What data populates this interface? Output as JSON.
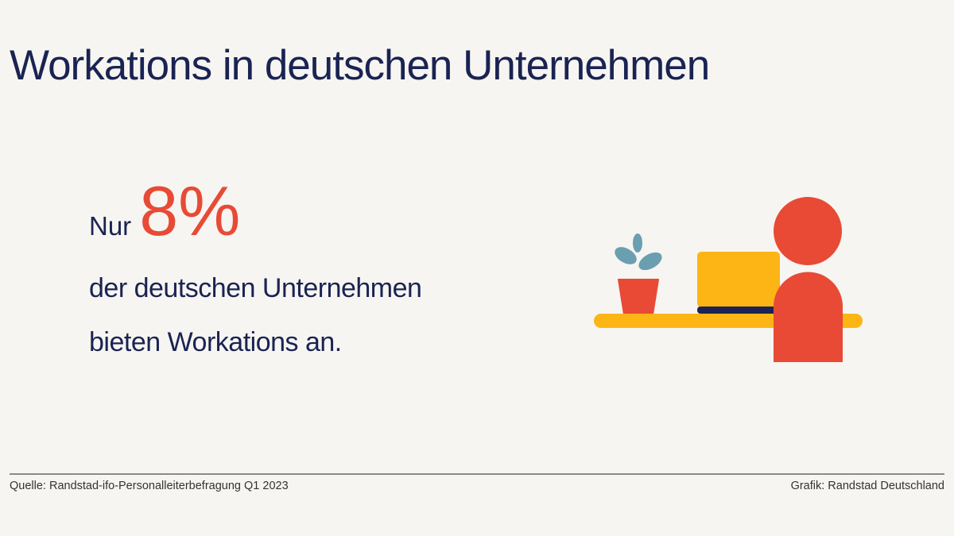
{
  "title": "Workations in deutschen Unternehmen",
  "highlight": {
    "prefix": "Nur",
    "value": "8%",
    "line1": "der deutschen Unternehmen",
    "line2": "bieten Workations an."
  },
  "footer": {
    "source": "Quelle: Randstad-ifo-Personalleiterbefragung Q1 2023",
    "credit": "Grafik: Randstad Deutschland"
  },
  "illustration": {
    "name": "person-at-desk-with-laptop-and-plant",
    "colors": {
      "accent_red": "#e84a35",
      "yellow": "#fdb515",
      "navy": "#1a2352",
      "teal": "#6a9fb0",
      "background": "#f6f5f1"
    }
  }
}
